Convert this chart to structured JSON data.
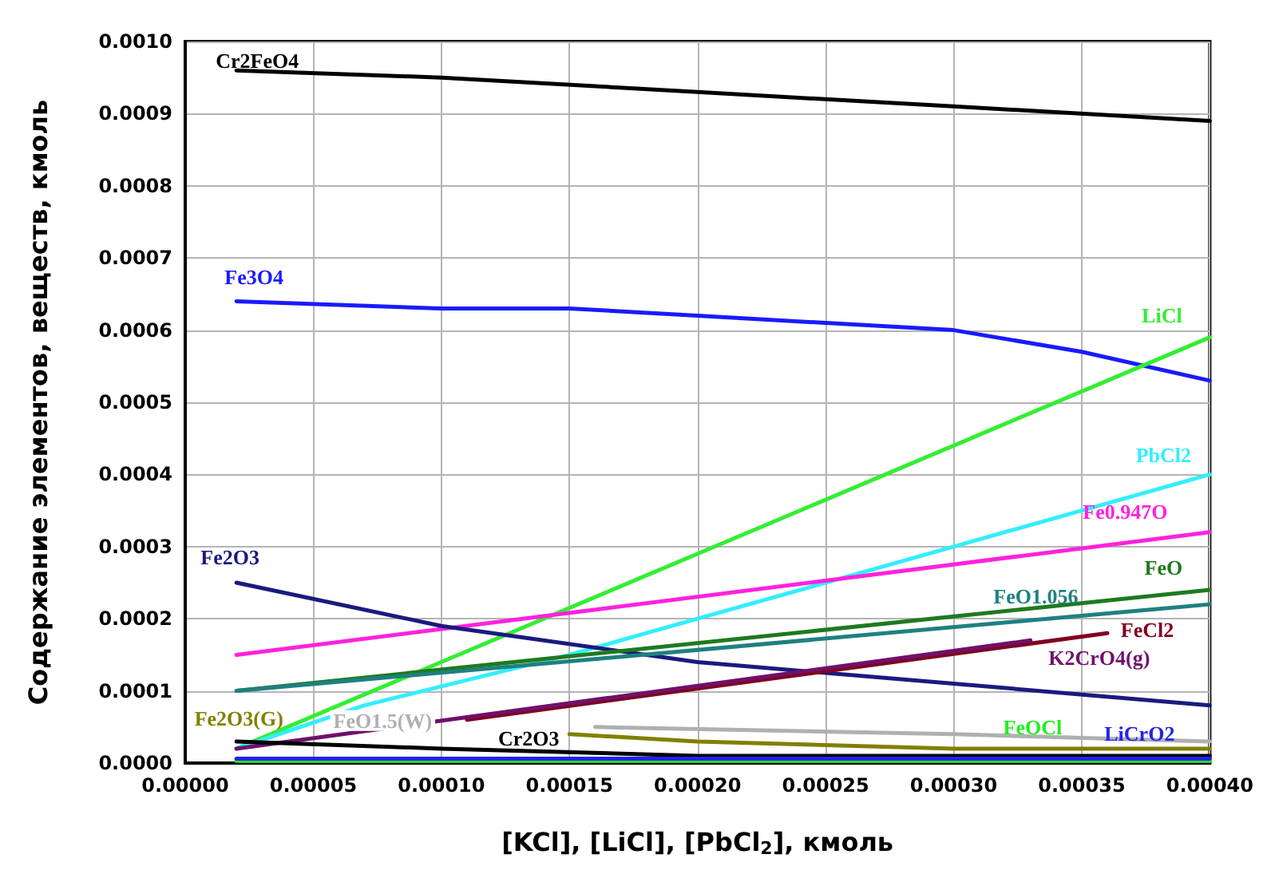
{
  "chart_data": {
    "type": "line",
    "xlabel": "[KCl], [LiCl], [PbCl$_{2}$], кмоль",
    "ylabel": "Содержание элементов, веществ, кмоль",
    "xlim": [
      0,
      0.0004
    ],
    "xticks": [
      {
        "value": 0,
        "label": "0.00000"
      },
      {
        "value": 5e-05,
        "label": "0.00005"
      },
      {
        "value": 0.0001,
        "label": "0.00010"
      },
      {
        "value": 0.00015,
        "label": "0.00015"
      },
      {
        "value": 0.0002,
        "label": "0.00020"
      },
      {
        "value": 0.00025,
        "label": "0.00025"
      },
      {
        "value": 0.0003,
        "label": "0.00030"
      },
      {
        "value": 0.00035,
        "label": "0.00035"
      },
      {
        "value": 0.0004,
        "label": "0.00040"
      }
    ],
    "ylim": [
      0,
      0.001
    ],
    "yticks": [
      {
        "value": 0,
        "label": "0.0000"
      },
      {
        "value": 0.0001,
        "label": "0.0001"
      },
      {
        "value": 0.0002,
        "label": "0.0002"
      },
      {
        "value": 0.0003,
        "label": "0.0003"
      },
      {
        "value": 0.0004,
        "label": "0.0004"
      },
      {
        "value": 0.0005,
        "label": "0.0005"
      },
      {
        "value": 0.0006,
        "label": "0.0006"
      },
      {
        "value": 0.0007,
        "label": "0.0007"
      },
      {
        "value": 0.0008,
        "label": "0.0008"
      },
      {
        "value": 0.0009,
        "label": "0.0009"
      },
      {
        "value": 0.001,
        "label": "0.0010"
      }
    ],
    "grid": true,
    "marker": "none",
    "line_style": "solid",
    "series": [
      {
        "name": "Cr2FeO4",
        "color": "#000000",
        "x": [
          2e-05,
          0.0001,
          0.0002,
          0.0003,
          0.0004
        ],
        "values": [
          0.00096,
          0.00095,
          0.00093,
          0.00091,
          0.00089
        ]
      },
      {
        "name": "Fe3O4",
        "color": "#1a1aff",
        "x": [
          2e-05,
          0.0001,
          0.00015,
          0.0002,
          0.00025,
          0.0003,
          0.00035,
          0.0004
        ],
        "values": [
          0.00064,
          0.00063,
          0.00063,
          0.00062,
          0.00061,
          0.0006,
          0.00057,
          0.00053
        ]
      },
      {
        "name": "LiCl",
        "color": "#33ee33",
        "x": [
          2e-05,
          0.0004
        ],
        "values": [
          2e-05,
          0.00059
        ]
      },
      {
        "name": "PbCl2",
        "color": "#33eeff",
        "x": [
          2e-05,
          7e-05,
          0.00015,
          0.0002,
          0.0003,
          0.00035,
          0.0004
        ],
        "values": [
          2e-05,
          8e-05,
          0.00015,
          0.0002,
          0.0003,
          0.00035,
          0.0004
        ]
      },
      {
        "name": "Fe0.947O",
        "color": "#ff22dd",
        "x": [
          2e-05,
          0.0004
        ],
        "values": [
          0.00015,
          0.00032
        ]
      },
      {
        "name": "Fe2O3",
        "color": "#1a1a80",
        "x": [
          2e-05,
          0.0001,
          0.0002,
          0.0003,
          0.0004
        ],
        "values": [
          0.00025,
          0.00019,
          0.00014,
          0.00011,
          8e-05
        ]
      },
      {
        "name": "FeO",
        "color": "#1e7a1e",
        "x": [
          2e-05,
          0.0004
        ],
        "values": [
          0.0001,
          0.00024
        ]
      },
      {
        "name": "FeO1.056",
        "color": "#1f8080",
        "x": [
          2e-05,
          0.0004
        ],
        "values": [
          0.0001,
          0.00022
        ]
      },
      {
        "name": "FeCl2",
        "color": "#800020",
        "x": [
          0.00011,
          0.00036
        ],
        "values": [
          6e-05,
          0.00018
        ]
      },
      {
        "name": "K2CrO4(g)",
        "color": "#70106a",
        "x": [
          2e-05,
          0.00033
        ],
        "values": [
          2e-05,
          0.00017
        ]
      },
      {
        "name": "Fe2O3(G)",
        "color": "#808000",
        "x": [
          0.00015,
          0.0002,
          0.0003,
          0.0004
        ],
        "values": [
          4e-05,
          3e-05,
          2e-05,
          2e-05
        ]
      },
      {
        "name": "FeO1.5(W)",
        "color": "#b0b0b0",
        "x": [
          0.00016,
          0.0003,
          0.0004
        ],
        "values": [
          5e-05,
          4e-05,
          3e-05
        ]
      },
      {
        "name": "Cr2O3",
        "color": "#000000",
        "x": [
          2e-05,
          0.0001,
          0.0002,
          0.0003,
          0.0004
        ],
        "values": [
          3e-05,
          2e-05,
          1e-05,
          1e-05,
          1e-05
        ]
      },
      {
        "name": "FeOCl",
        "color": "#22ee22",
        "x": [
          2e-05,
          0.0004
        ],
        "values": [
          3e-06,
          3e-06
        ]
      },
      {
        "name": "LiCrO2",
        "color": "#2222ee",
        "x": [
          2e-05,
          0.0004
        ],
        "values": [
          6e-06,
          6e-06
        ]
      }
    ]
  }
}
